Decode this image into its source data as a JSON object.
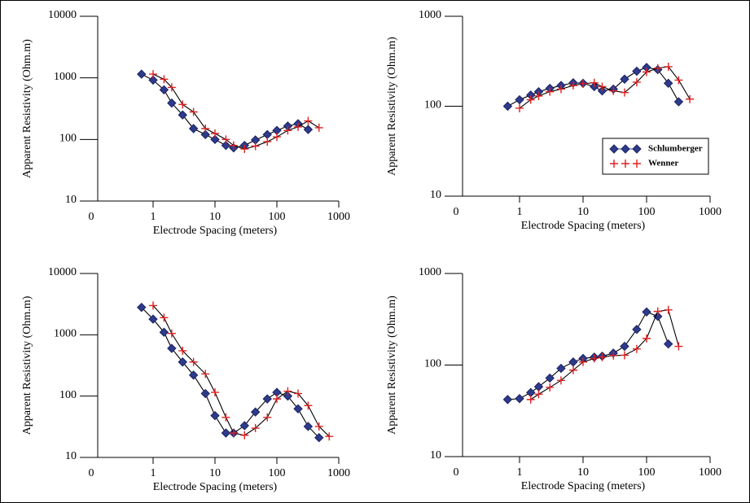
{
  "chart_data": [
    {
      "type": "line",
      "log_x": true,
      "log_y": true,
      "xlabel": "Electrode Spacing (meters)",
      "ylabel": "Apparent Resistivity (Ohm.m)",
      "xlim": [
        0.1,
        1000
      ],
      "ylim": [
        10,
        10000
      ],
      "xticks": [
        {
          "value": 0.1,
          "label": "0"
        },
        1,
        10,
        100,
        1000
      ],
      "yticks": [
        10,
        100,
        1000,
        10000
      ],
      "series": [
        {
          "marker": "diamond",
          "color": "#2e3b8c",
          "x": [
            0.65,
            1,
            1.5,
            2,
            3,
            4.5,
            7,
            10,
            15,
            20,
            30,
            45,
            70,
            100,
            150,
            220,
            320
          ],
          "values": [
            1150,
            920,
            640,
            390,
            250,
            150,
            120,
            100,
            80,
            73,
            80,
            98,
            120,
            140,
            165,
            180,
            145
          ]
        },
        {
          "marker": "plus",
          "color": "#e02020",
          "x": [
            1,
            1.5,
            2,
            3,
            4.5,
            7,
            10,
            15,
            20,
            30,
            45,
            70,
            100,
            150,
            220,
            320,
            480
          ],
          "values": [
            1150,
            950,
            700,
            370,
            280,
            150,
            125,
            100,
            80,
            70,
            78,
            92,
            110,
            140,
            160,
            200,
            155
          ]
        }
      ]
    },
    {
      "type": "line",
      "log_x": true,
      "log_y": true,
      "xlabel": "Electrode Spacing (meters)",
      "ylabel": "Apparent Resistivity (Ohm.m)",
      "xlim": [
        0.1,
        1000
      ],
      "ylim": [
        10,
        1000
      ],
      "xticks": [
        {
          "value": 0.1,
          "label": "0"
        },
        1,
        10,
        100,
        1000
      ],
      "yticks": [
        10,
        100,
        1000
      ],
      "legend": "right",
      "series": [
        {
          "name": "Schlumberger",
          "marker": "diamond",
          "color": "#2e3b8c",
          "x": [
            0.65,
            1,
            1.5,
            2,
            3,
            4.5,
            7,
            10,
            15,
            20,
            30,
            45,
            70,
            100,
            150,
            220,
            320
          ],
          "values": [
            100,
            118,
            133,
            145,
            158,
            170,
            182,
            180,
            165,
            148,
            155,
            200,
            245,
            270,
            255,
            180,
            112
          ]
        },
        {
          "name": "Wenner",
          "marker": "plus",
          "color": "#e02020",
          "x": [
            1,
            1.5,
            2,
            3,
            4.5,
            7,
            10,
            15,
            20,
            30,
            45,
            70,
            100,
            150,
            220,
            320,
            480
          ],
          "values": [
            95,
            118,
            130,
            145,
            155,
            170,
            178,
            182,
            165,
            148,
            142,
            185,
            240,
            265,
            275,
            195,
            120
          ]
        }
      ]
    },
    {
      "type": "line",
      "log_x": true,
      "log_y": true,
      "xlabel": "Electrode Spacing (meters)",
      "ylabel": "Apparent Resistivity (Ohm.m)",
      "xlim": [
        0.1,
        1000
      ],
      "ylim": [
        10,
        10000
      ],
      "xticks": [
        {
          "value": 0.1,
          "label": "0"
        },
        1,
        10,
        100,
        1000
      ],
      "yticks": [
        10,
        100,
        1000,
        10000
      ],
      "series": [
        {
          "marker": "diamond",
          "color": "#2e3b8c",
          "x": [
            0.65,
            1,
            1.5,
            2,
            3,
            4.5,
            7,
            10,
            15,
            20,
            30,
            45,
            70,
            100,
            150,
            220,
            320,
            480
          ],
          "values": [
            2800,
            1800,
            1100,
            600,
            360,
            220,
            110,
            48,
            25,
            25,
            33,
            55,
            90,
            115,
            100,
            62,
            32,
            21
          ]
        },
        {
          "marker": "plus",
          "color": "#e02020",
          "x": [
            1,
            1.5,
            2,
            3,
            4.5,
            7,
            10,
            15,
            20,
            30,
            45,
            70,
            100,
            150,
            220,
            320,
            480,
            700
          ],
          "values": [
            3000,
            1900,
            1050,
            550,
            360,
            230,
            115,
            45,
            25,
            23,
            30,
            45,
            90,
            120,
            110,
            70,
            32,
            22
          ]
        }
      ]
    },
    {
      "type": "line",
      "log_x": true,
      "log_y": true,
      "xlabel": "Electrode Spacing (meters)",
      "ylabel": "Apparent Resistivity (Ohm.m)",
      "xlim": [
        0.1,
        1000
      ],
      "ylim": [
        10,
        1000
      ],
      "xticks": [
        {
          "value": 0.1,
          "label": "0"
        },
        1,
        10,
        100,
        1000
      ],
      "yticks": [
        10,
        100,
        1000
      ],
      "series": [
        {
          "marker": "diamond",
          "color": "#2e3b8c",
          "x": [
            0.65,
            1,
            1.5,
            2,
            3,
            4.5,
            7,
            10,
            15,
            20,
            30,
            45,
            70,
            100,
            150,
            220
          ],
          "values": [
            42,
            43,
            50,
            58,
            72,
            92,
            108,
            118,
            122,
            125,
            135,
            160,
            245,
            380,
            340,
            170
          ]
        },
        {
          "marker": "plus",
          "color": "#e02020",
          "x": [
            1.5,
            2,
            3,
            4.5,
            7,
            10,
            15,
            20,
            30,
            45,
            70,
            100,
            150,
            220,
            320
          ],
          "values": [
            42,
            48,
            57,
            68,
            88,
            108,
            118,
            122,
            127,
            128,
            150,
            195,
            385,
            400,
            160
          ]
        }
      ]
    }
  ]
}
